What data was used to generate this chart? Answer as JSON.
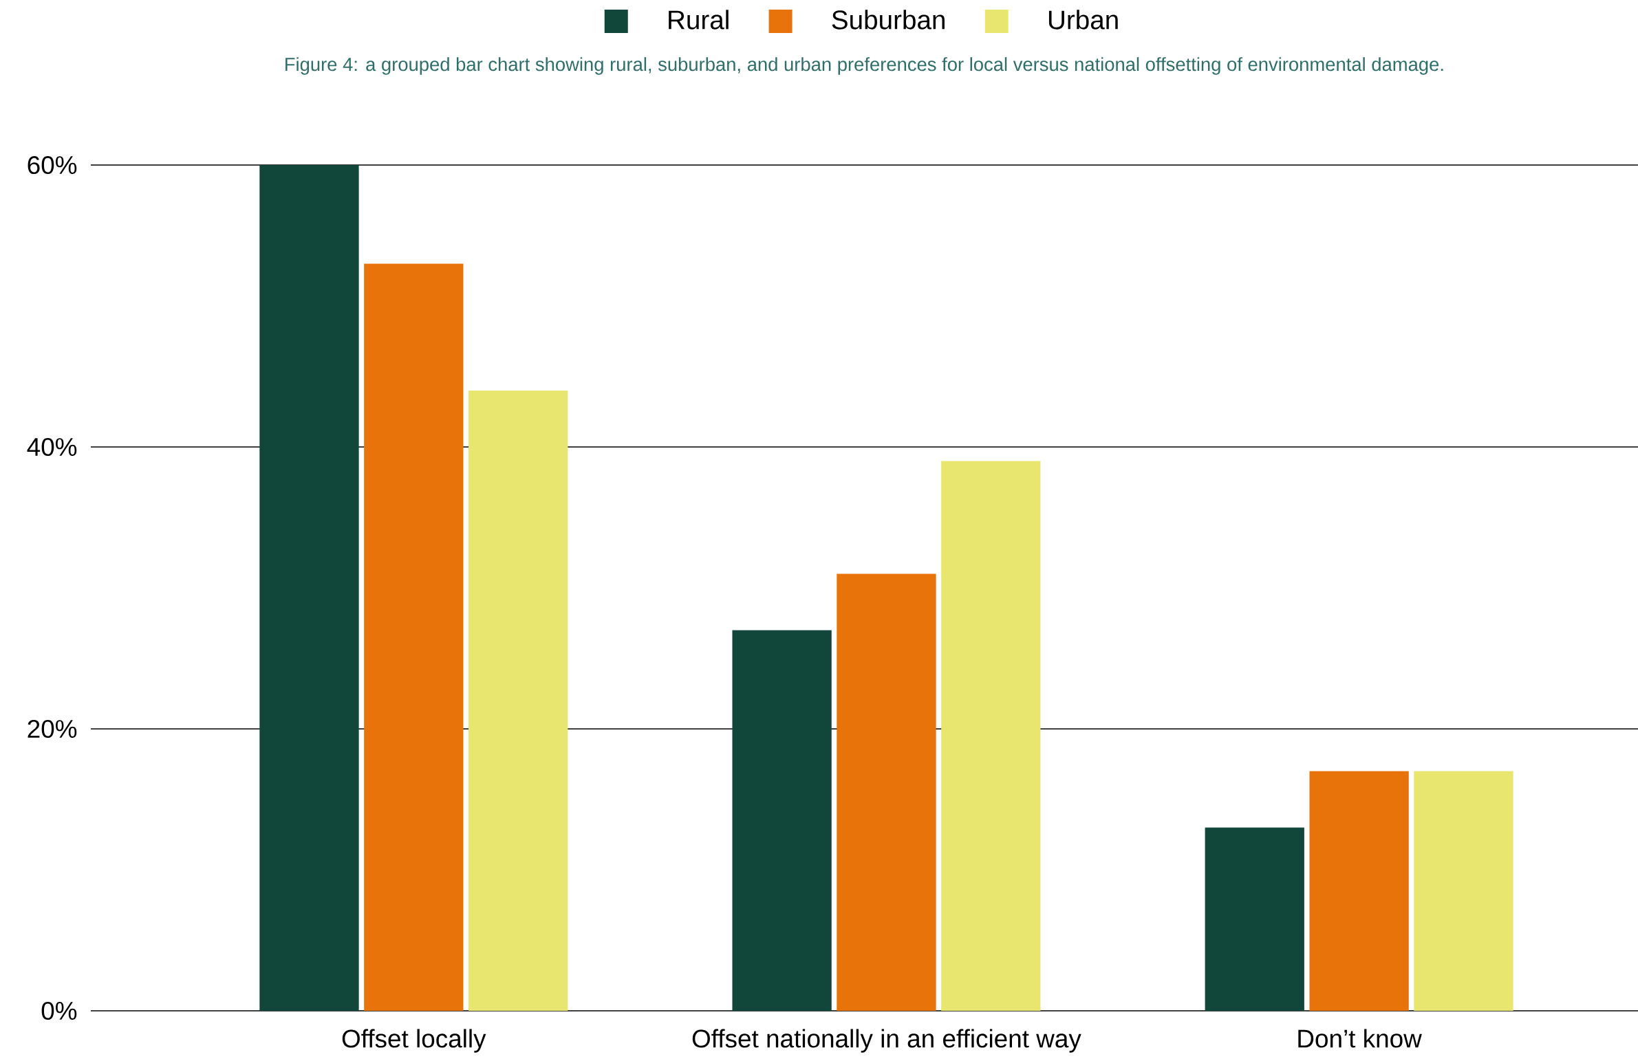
{
  "chart_data": {
    "type": "bar",
    "title": "Figure 4: a grouped bar chart showing rural, suburban, and urban preferences for local versus national offsetting of environmental damage.",
    "categories": [
      "Offset locally",
      "Offset nationally in an efficient way",
      "Don’t know"
    ],
    "series": [
      {
        "name": "Rural",
        "color": "#11473a",
        "values": [
          60,
          27,
          13
        ]
      },
      {
        "name": "Suburban",
        "color": "#e8730a",
        "values": [
          53,
          31,
          17
        ]
      },
      {
        "name": "Urban",
        "color": "#e8e66f",
        "values": [
          44,
          39,
          17
        ]
      }
    ],
    "ylim": [
      0,
      60
    ],
    "yticks": [
      {
        "value": 0,
        "label": "0%"
      },
      {
        "value": 20,
        "label": "20%"
      },
      {
        "value": 40,
        "label": "40%"
      },
      {
        "value": 60,
        "label": "60%"
      }
    ],
    "grid": "y",
    "legend": "top"
  }
}
